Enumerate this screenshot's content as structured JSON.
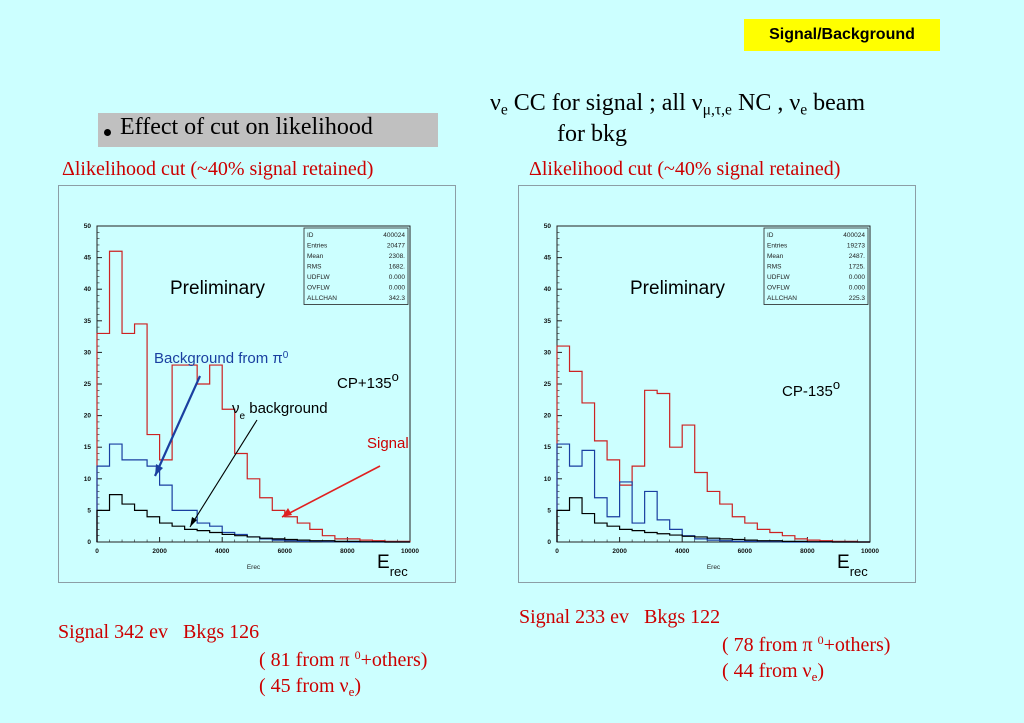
{
  "header": {
    "tag": "Signal/Background"
  },
  "bullet": {
    "text": "Effect of cut on likelihood"
  },
  "description": {
    "nu": "ν",
    "sub_e": "e",
    "line1_mid": " CC for signal ; all ν",
    "sub_mte": "μ,τ,e",
    "line1_mid2": " NC , ν",
    "line1_end": " beam",
    "line2": "for bkg"
  },
  "panels": [
    {
      "cut_title": "Δlikelihood cut (~40% signal retained)",
      "preliminary": "Preliminary",
      "angle": "CP+135",
      "degree": "o",
      "xlabel_main": "E",
      "xlabel_sub": "rec",
      "axis_small_label": "Erec",
      "annotations": {
        "pi0_text": "Background from π",
        "pi0_sup": "0",
        "nue_nu": "ν",
        "nue_sub": "e",
        "nue_rest": " background",
        "signal": "Signal"
      },
      "stats": [
        [
          "ID",
          "400024"
        ],
        [
          "Entries",
          "20477"
        ],
        [
          "Mean",
          "2308."
        ],
        [
          "RMS",
          "1682."
        ],
        [
          "UDFLW",
          "0.000"
        ],
        [
          "OVFLW",
          "0.000"
        ],
        [
          "ALLCHAN",
          "342.3"
        ]
      ],
      "summary": {
        "line1a": "Signal 342 ev",
        "line1b": "Bkgs   126",
        "line2_pre": "(   81 from π ",
        "line2_sup": "0",
        "line2_post": "+others)",
        "line3_pre": "(   45 from ν",
        "line3_sub": "e",
        "line3_post": ")"
      }
    },
    {
      "cut_title": "Δlikelihood cut (~40% signal retained)",
      "preliminary": "Preliminary",
      "angle": "CP-135",
      "degree": "o",
      "xlabel_main": "E",
      "xlabel_sub": "rec",
      "axis_small_label": "Erec",
      "stats": [
        [
          "ID",
          "400024"
        ],
        [
          "Entries",
          "19273"
        ],
        [
          "Mean",
          "2487."
        ],
        [
          "RMS",
          "1725."
        ],
        [
          "UDFLW",
          "0.000"
        ],
        [
          "OVFLW",
          "0.000"
        ],
        [
          "ALLCHAN",
          "225.3"
        ]
      ],
      "summary": {
        "line1a": "Signal 233 ev",
        "line1b": "Bkgs   122",
        "line2_pre": "(   78 from π ",
        "line2_sup": "0",
        "line2_post": "+others)",
        "line3_pre": "(   44 from ν",
        "line3_sub": "e",
        "line3_post": ")"
      }
    }
  ],
  "chart_data": [
    {
      "type": "histogram",
      "xlim": [
        0,
        10000
      ],
      "ylim": [
        0,
        50
      ],
      "xticks": [
        0,
        2000,
        4000,
        6000,
        8000,
        10000
      ],
      "yticks": [
        0,
        5,
        10,
        15,
        20,
        25,
        30,
        35,
        40,
        45,
        50
      ],
      "bin_width": 400,
      "colors": {
        "signal": "#cc2222",
        "pi0": "#1a3fa0",
        "nue": "#000000"
      },
      "series": [
        {
          "key": "signal",
          "values": [
            33,
            46,
            33,
            34.5,
            17,
            13,
            28,
            28,
            25,
            28,
            21,
            14,
            10,
            7,
            5,
            4,
            3,
            2,
            1,
            0.5,
            0.5,
            0.3,
            0.2,
            0.1,
            0.1
          ]
        },
        {
          "key": "pi0",
          "values": [
            12,
            15.5,
            13,
            13,
            12,
            9,
            5,
            5,
            3,
            2.5,
            1.5,
            1.2,
            0.8,
            0.5,
            0.3,
            0.2,
            0.1,
            0.1,
            0.05,
            0.05,
            0,
            0,
            0,
            0,
            0
          ]
        },
        {
          "key": "nue",
          "values": [
            5,
            7.5,
            6,
            5,
            4,
            3,
            2.5,
            2,
            1.8,
            1.5,
            1.2,
            1,
            0.8,
            0.6,
            0.5,
            0.4,
            0.3,
            0.2,
            0.2,
            0.1,
            0.1,
            0.05,
            0.05,
            0,
            0
          ]
        }
      ]
    },
    {
      "type": "histogram",
      "xlim": [
        0,
        10000
      ],
      "ylim": [
        0,
        50
      ],
      "xticks": [
        0,
        2000,
        4000,
        6000,
        8000,
        10000
      ],
      "yticks": [
        0,
        5,
        10,
        15,
        20,
        25,
        30,
        35,
        40,
        45,
        50
      ],
      "bin_width": 400,
      "colors": {
        "signal": "#cc2222",
        "pi0": "#1a3fa0",
        "nue": "#000000"
      },
      "series": [
        {
          "key": "signal",
          "values": [
            31,
            27,
            22,
            16,
            13,
            9,
            12,
            24,
            23.5,
            15,
            18.5,
            11,
            8,
            6,
            4,
            3,
            2,
            1.5,
            1,
            0.5,
            0.3,
            0.2,
            0.1,
            0.1,
            0
          ]
        },
        {
          "key": "pi0",
          "values": [
            15.5,
            12,
            14.5,
            7,
            4,
            9.5,
            3,
            8,
            3.5,
            2,
            1,
            0.5,
            0.3,
            0.2,
            0.1,
            0.1,
            0.05,
            0.05,
            0,
            0,
            0,
            0,
            0,
            0,
            0
          ]
        },
        {
          "key": "nue",
          "values": [
            5,
            7,
            4.5,
            3,
            2.5,
            2,
            1.8,
            1.5,
            1.3,
            1.1,
            0.9,
            0.8,
            0.6,
            0.5,
            0.4,
            0.3,
            0.2,
            0.2,
            0.1,
            0.1,
            0.05,
            0.05,
            0,
            0,
            0
          ]
        }
      ]
    }
  ]
}
